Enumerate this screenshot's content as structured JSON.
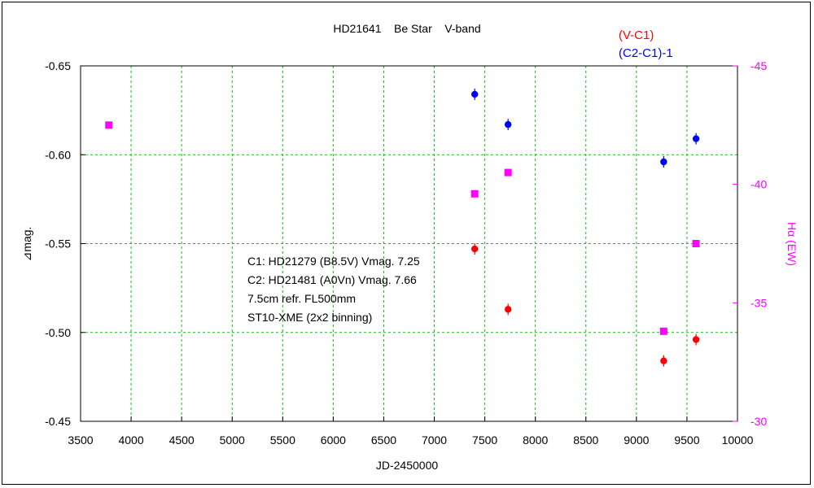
{
  "chart_data": {
    "type": "scatter",
    "title": "HD21641    Be Star    V-band",
    "xlabel": "JD-2450000",
    "ylabel": "⊿mag.",
    "y2label": "Hα (EW)",
    "xlim": [
      3500,
      10000
    ],
    "ylim": [
      -0.45,
      -0.65
    ],
    "y2lim": [
      -30.0,
      -45.0
    ],
    "grid": true,
    "legend_position": "top-right",
    "x_ticks": [
      "3500",
      "4000",
      "4500",
      "5000",
      "5500",
      "6000",
      "6500",
      "7000",
      "7500",
      "8000",
      "8500",
      "9000",
      "9500",
      "10000"
    ],
    "y_ticks": [
      "-0.65",
      "-0.60",
      "-0.55",
      "-0.50",
      "-0.45"
    ],
    "y2_ticks": [
      "-45",
      "-40",
      "-35",
      "-30"
    ],
    "series": [
      {
        "name": "(V-C1)",
        "color": "#ff0000",
        "axis": "left",
        "marker": "circle",
        "points": [
          {
            "x": 7400,
            "y": -0.547
          },
          {
            "x": 7730,
            "y": -0.513
          },
          {
            "x": 9270,
            "y": -0.484
          },
          {
            "x": 9590,
            "y": -0.496
          }
        ]
      },
      {
        "name": "(C2-C1)-1",
        "color": "#0000ff",
        "axis": "left",
        "marker": "circle",
        "points": [
          {
            "x": 7400,
            "y": -0.634
          },
          {
            "x": 7730,
            "y": -0.617
          },
          {
            "x": 9270,
            "y": -0.596
          },
          {
            "x": 9590,
            "y": -0.609
          }
        ]
      },
      {
        "name": "Hα",
        "color": "#ff00ff",
        "axis": "right",
        "marker": "square",
        "points": [
          {
            "x": 3780,
            "y": -42.5
          },
          {
            "x": 7400,
            "y": -39.6
          },
          {
            "x": 7730,
            "y": -40.5
          },
          {
            "x": 9270,
            "y": -33.8
          },
          {
            "x": 9590,
            "y": -37.5
          }
        ]
      }
    ],
    "annotations": [
      "C1: HD21279 (B8.5V) Vmag. 7.25",
      "C2: HD21481 (A0Vn) Vmag. 7.66",
      "7.5cm refr. FL500mm",
      "ST10-XME (2x2 binning)"
    ]
  },
  "colors": {
    "grid": "#00cc00",
    "right_axis": "#ff00ff",
    "axis": "#000000"
  }
}
